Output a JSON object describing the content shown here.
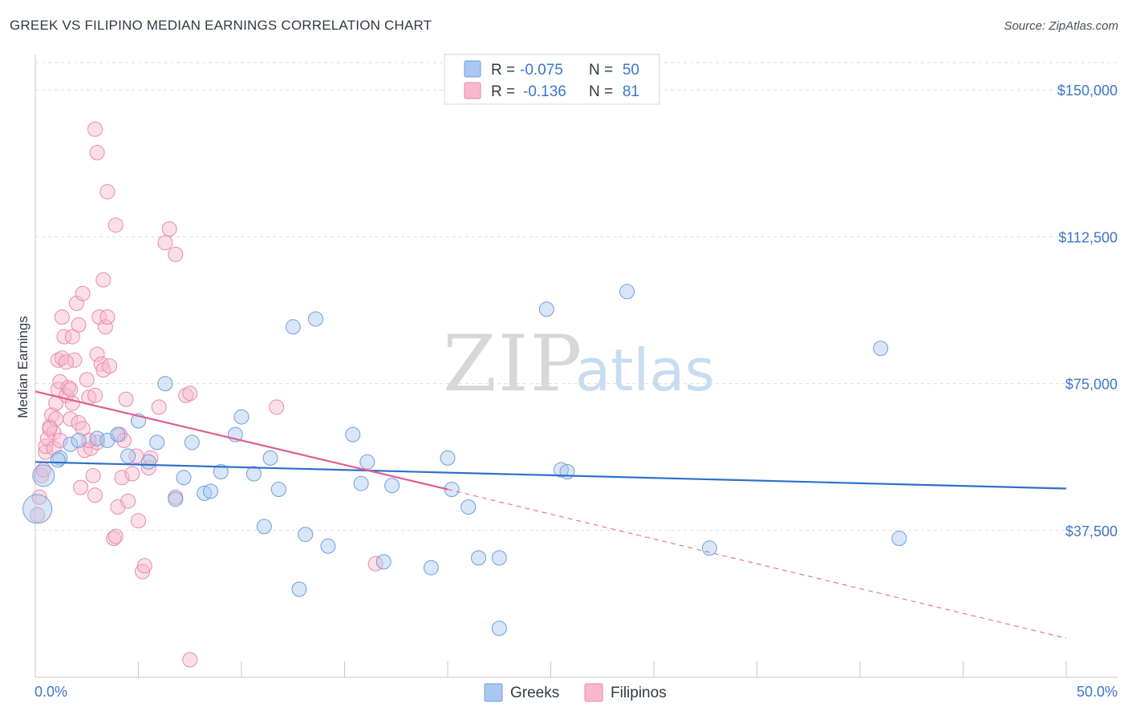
{
  "title": "GREEK VS FILIPINO MEDIAN EARNINGS CORRELATION CHART",
  "source": "Source: ZipAtlas.com",
  "watermark": {
    "zip": "ZIP",
    "atlas": "atlas"
  },
  "chart_data": {
    "type": "scatter",
    "title": "GREEK VS FILIPINO MEDIAN EARNINGS CORRELATION CHART",
    "xlabel": "",
    "ylabel": "Median Earnings",
    "xlim": [
      0,
      50
    ],
    "ylim": [
      0,
      157000
    ],
    "x_tick_labels": {
      "min": "0.0%",
      "max": "50.0%"
    },
    "y_ticks": [
      {
        "value": 37500,
        "label": "$37,500"
      },
      {
        "value": 75000,
        "label": "$75,000"
      },
      {
        "value": 112500,
        "label": "$112,500"
      },
      {
        "value": 150000,
        "label": "$150,000"
      }
    ],
    "legend": [
      {
        "name": "Greeks",
        "r_label": "R =",
        "r": "-0.075",
        "n_label": "N =",
        "n": "50",
        "color": "#a9c8f0",
        "stroke": "#6f9fd8",
        "line": "#2f6fcb"
      },
      {
        "name": "Filipinos",
        "r_label": "R =",
        "r": "-0.136",
        "n_label": "N =",
        "n": "81",
        "color": "#f7b8cc",
        "stroke": "#e88aaa",
        "line": "#e0608e"
      }
    ],
    "series": [
      {
        "name": "Greeks",
        "trend": {
          "x0": 0,
          "y0": 55000,
          "x1": 50,
          "y1": 48200
        },
        "points": [
          [
            0.1,
            43000,
            2
          ],
          [
            0.4,
            51500,
            1.5
          ],
          [
            1.2,
            56000,
            1
          ],
          [
            1.7,
            59500,
            1
          ],
          [
            2.1,
            60500,
            1
          ],
          [
            3.0,
            61000,
            1
          ],
          [
            3.5,
            60500,
            1
          ],
          [
            4.0,
            62000,
            1
          ],
          [
            4.5,
            56500,
            1
          ],
          [
            5.0,
            65500,
            1
          ],
          [
            5.5,
            55000,
            1
          ],
          [
            5.9,
            60000,
            1
          ],
          [
            6.3,
            75000,
            1
          ],
          [
            6.8,
            45500,
            1
          ],
          [
            7.2,
            51000,
            1
          ],
          [
            7.6,
            60000,
            1
          ],
          [
            8.2,
            47000,
            1
          ],
          [
            8.5,
            47500,
            1
          ],
          [
            9.0,
            52500,
            1
          ],
          [
            9.7,
            62000,
            1
          ],
          [
            10.0,
            66500,
            1
          ],
          [
            10.6,
            52000,
            1
          ],
          [
            11.1,
            38500,
            1
          ],
          [
            11.4,
            56000,
            1
          ],
          [
            11.8,
            48000,
            1
          ],
          [
            12.5,
            89500,
            1
          ],
          [
            12.8,
            22500,
            1
          ],
          [
            13.1,
            36500,
            1
          ],
          [
            13.6,
            91500,
            1
          ],
          [
            14.2,
            33500,
            1
          ],
          [
            15.4,
            62000,
            1
          ],
          [
            15.8,
            49500,
            1
          ],
          [
            16.1,
            55000,
            1
          ],
          [
            16.9,
            29500,
            1
          ],
          [
            17.3,
            49000,
            1
          ],
          [
            19.2,
            28000,
            1
          ],
          [
            20.0,
            56000,
            1
          ],
          [
            20.2,
            48000,
            1
          ],
          [
            21.0,
            43500,
            1
          ],
          [
            21.5,
            30500,
            1
          ],
          [
            22.5,
            30500,
            1
          ],
          [
            22.5,
            12500,
            1
          ],
          [
            24.8,
            94000,
            1
          ],
          [
            25.5,
            53000,
            1
          ],
          [
            25.8,
            52500,
            1
          ],
          [
            28.7,
            98500,
            1
          ],
          [
            32.7,
            33000,
            1
          ],
          [
            41.0,
            84000,
            1
          ],
          [
            41.9,
            35500,
            1
          ],
          [
            1.1,
            55500,
            1
          ]
        ]
      },
      {
        "name": "Filipinos",
        "trend": {
          "x0": 0,
          "y0": 73000,
          "x1": 20,
          "y1": 48000,
          "dash_x1": 50,
          "dash_y1": 10000
        },
        "points": [
          [
            0.1,
            41500,
            1
          ],
          [
            0.2,
            46000,
            1
          ],
          [
            0.3,
            51500,
            1
          ],
          [
            0.4,
            53000,
            1
          ],
          [
            0.5,
            57500,
            1
          ],
          [
            0.5,
            59000,
            1
          ],
          [
            0.6,
            61000,
            1
          ],
          [
            0.7,
            64000,
            1
          ],
          [
            0.8,
            67000,
            1
          ],
          [
            0.9,
            62500,
            1
          ],
          [
            1.0,
            66000,
            1
          ],
          [
            1.0,
            70000,
            1
          ],
          [
            1.1,
            73500,
            1
          ],
          [
            1.1,
            81000,
            1
          ],
          [
            1.2,
            75500,
            1
          ],
          [
            1.3,
            81500,
            1
          ],
          [
            1.3,
            92000,
            1
          ],
          [
            1.4,
            87000,
            1
          ],
          [
            1.5,
            72000,
            1
          ],
          [
            1.6,
            74000,
            1
          ],
          [
            1.7,
            66000,
            1
          ],
          [
            1.7,
            73500,
            1
          ],
          [
            1.8,
            87000,
            1
          ],
          [
            1.8,
            70000,
            1
          ],
          [
            1.9,
            81000,
            1
          ],
          [
            2.0,
            95500,
            1
          ],
          [
            2.1,
            65000,
            1
          ],
          [
            2.1,
            90000,
            1
          ],
          [
            2.2,
            48500,
            1
          ],
          [
            2.3,
            98000,
            1
          ],
          [
            2.3,
            63500,
            1
          ],
          [
            2.4,
            58000,
            1
          ],
          [
            2.5,
            76000,
            1
          ],
          [
            2.6,
            71500,
            1
          ],
          [
            2.7,
            58500,
            1
          ],
          [
            2.8,
            51500,
            1
          ],
          [
            2.9,
            46500,
            1
          ],
          [
            2.9,
            72000,
            1
          ],
          [
            3.0,
            60000,
            1
          ],
          [
            3.0,
            82500,
            1
          ],
          [
            3.1,
            92000,
            1
          ],
          [
            3.2,
            80000,
            1
          ],
          [
            3.3,
            78500,
            1
          ],
          [
            3.4,
            89500,
            1
          ],
          [
            3.5,
            92000,
            1
          ],
          [
            3.6,
            79500,
            1
          ],
          [
            3.8,
            35500,
            1
          ],
          [
            3.9,
            36000,
            1
          ],
          [
            4.0,
            43500,
            1
          ],
          [
            4.1,
            62000,
            1
          ],
          [
            4.2,
            51000,
            1
          ],
          [
            4.3,
            60500,
            1
          ],
          [
            4.5,
            45000,
            1
          ],
          [
            4.7,
            52000,
            1
          ],
          [
            4.9,
            56500,
            1
          ],
          [
            5.0,
            40000,
            1
          ],
          [
            5.2,
            27000,
            1
          ],
          [
            5.3,
            28500,
            1
          ],
          [
            5.5,
            53500,
            1
          ],
          [
            5.6,
            56000,
            1
          ],
          [
            3.5,
            124000,
            1
          ],
          [
            3.0,
            134000,
            1
          ],
          [
            2.9,
            140000,
            1
          ],
          [
            3.9,
            115500,
            1
          ],
          [
            6.0,
            69000,
            1
          ],
          [
            6.3,
            111000,
            1
          ],
          [
            6.5,
            114500,
            1
          ],
          [
            6.8,
            108000,
            1
          ],
          [
            6.8,
            46000,
            1
          ],
          [
            7.3,
            72000,
            1
          ],
          [
            7.5,
            72500,
            1
          ],
          [
            7.5,
            4500,
            1
          ],
          [
            11.7,
            69000,
            1
          ],
          [
            16.5,
            29000,
            1
          ],
          [
            3.3,
            101500,
            1
          ],
          [
            4.4,
            71000,
            1
          ],
          [
            1.5,
            80500,
            1
          ],
          [
            0.9,
            58500,
            1
          ],
          [
            0.7,
            63500,
            1
          ],
          [
            1.2,
            60500,
            1
          ],
          [
            2.6,
            60500,
            1
          ]
        ]
      }
    ]
  }
}
